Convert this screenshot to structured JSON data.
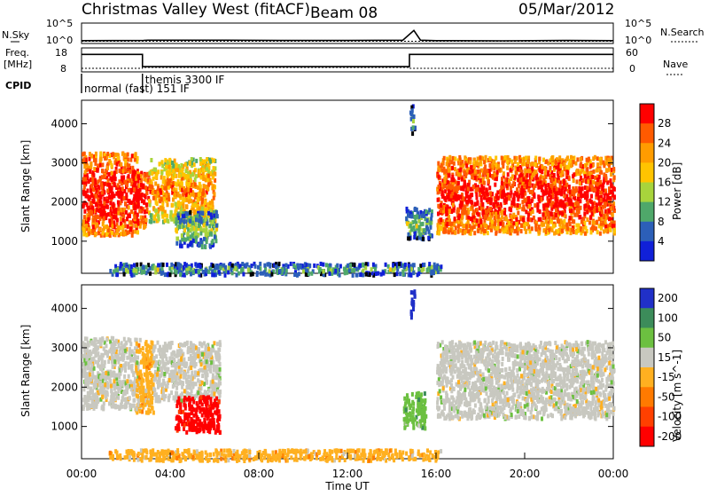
{
  "header": {
    "station": "Christmas Valley West (fitACF)",
    "beam": "Beam 08",
    "date": "05/Mar/2012"
  },
  "chart_data": [
    {
      "type": "line",
      "name": "noise-panel",
      "left_label": "N.Sky",
      "right_label": "N.Search",
      "y_ticks_left": [
        "10^5",
        "10^0"
      ],
      "y_ticks_right": [
        "10^5",
        "10^0"
      ],
      "x": [
        0,
        2.8,
        3.0,
        6,
        9,
        12,
        14.5,
        15.0,
        15.3,
        16,
        19,
        22,
        24
      ],
      "sky": [
        0.7,
        0.75,
        0.8,
        0.8,
        0.75,
        0.75,
        0.8,
        3.2,
        0.8,
        0.7,
        0.65,
        0.75,
        0.7
      ],
      "search": [
        0.55,
        0.55,
        0.55,
        0.55,
        0.55,
        0.55,
        0.55,
        0.55,
        0.55,
        0.55,
        0.55,
        0.55,
        0.55
      ]
    },
    {
      "type": "line",
      "name": "frequency-panel",
      "left_label_1": "Freq.",
      "left_label_2": "[MHz]",
      "right_label": "Nave",
      "y_ticks_left": [
        "18",
        "8"
      ],
      "y_ticks_right": [
        "60",
        "0"
      ],
      "x": [
        0,
        2.75,
        2.75,
        14.8,
        14.8,
        24
      ],
      "freq": [
        15.3,
        15.3,
        10.2,
        10.2,
        15.3,
        15.3
      ],
      "nave": [
        9,
        9,
        11,
        11,
        9,
        9
      ]
    },
    {
      "type": "table",
      "name": "cpid-panel",
      "label": "CPID",
      "segments": [
        {
          "start": 0,
          "end": 2.75,
          "text": "normal (fast) 151 IF"
        },
        {
          "start": 2.75,
          "end": 14.8,
          "text": "themis 3300 IF"
        }
      ]
    },
    {
      "type": "heatmap",
      "name": "power-panel",
      "ylabel": "Slant Range [km]",
      "y_ticks": [
        1000,
        2000,
        3000,
        4000
      ],
      "ylim": [
        180,
        4600
      ],
      "colorbar_label": "Power [dB]",
      "colorbar_ticks": [
        "28",
        "24",
        "20",
        "16",
        "12",
        "8",
        "4"
      ],
      "colors": [
        "#ff0000",
        "#ff5a00",
        "#ff9c00",
        "#ffc400",
        "#a8d43c",
        "#4fa86a",
        "#2c5fb8",
        "#1020d8"
      ],
      "regions": [
        {
          "t0": 0.0,
          "t1": 2.5,
          "r0": 1200,
          "r1": 3300,
          "level": 0.85
        },
        {
          "t0": 2.3,
          "t1": 3.0,
          "r0": 1400,
          "r1": 2800,
          "level": 0.9
        },
        {
          "t0": 3.0,
          "t1": 6.0,
          "r0": 1500,
          "r1": 3150,
          "level": 0.6
        },
        {
          "t0": 4.2,
          "t1": 6.1,
          "r0": 900,
          "r1": 1800,
          "level": 0.3
        },
        {
          "t0": 14.6,
          "t1": 15.8,
          "r0": 1100,
          "r1": 1900,
          "level": 0.25
        },
        {
          "t0": 16.0,
          "t1": 24.0,
          "r0": 1250,
          "r1": 3200,
          "level": 0.82
        },
        {
          "t0": 1.2,
          "t1": 16.2,
          "r0": 180,
          "r1": 480,
          "level": 0.2
        },
        {
          "t0": 14.8,
          "t1": 15.0,
          "r0": 3800,
          "r1": 4500,
          "level": 0.15
        }
      ]
    },
    {
      "type": "heatmap",
      "name": "velocity-panel",
      "ylabel": "Slant Range [km]",
      "y_ticks": [
        1000,
        2000,
        3000,
        4000
      ],
      "ylim": [
        180,
        4600
      ],
      "colorbar_label": "Velocity [m s^-1]",
      "colorbar_ticks": [
        "200",
        "100",
        "50",
        "15",
        "-15",
        "-50",
        "-100",
        "-200"
      ],
      "colors": [
        "#2030c8",
        "#3c8c5a",
        "#6cc040",
        "#c8c8c0",
        "#ffb020",
        "#ff7a00",
        "#ff4000",
        "#ff0000"
      ],
      "regions": [
        {
          "t0": 0.0,
          "t1": 2.6,
          "r0": 1500,
          "r1": 3300,
          "level": "gray"
        },
        {
          "t0": 2.4,
          "t1": 3.2,
          "r0": 1400,
          "r1": 3200,
          "level": "orange"
        },
        {
          "t0": 3.2,
          "t1": 6.2,
          "r0": 1700,
          "r1": 3200,
          "level": "gray"
        },
        {
          "t0": 4.2,
          "t1": 6.2,
          "r0": 900,
          "r1": 1800,
          "level": "red"
        },
        {
          "t0": 14.5,
          "t1": 15.5,
          "r0": 1000,
          "r1": 1900,
          "level": "green"
        },
        {
          "t0": 16.0,
          "t1": 24.0,
          "r0": 1250,
          "r1": 3200,
          "level": "gray"
        },
        {
          "t0": 1.2,
          "t1": 16.2,
          "r0": 180,
          "r1": 450,
          "level": "orange"
        },
        {
          "t0": 14.8,
          "t1": 15.0,
          "r0": 3800,
          "r1": 4500,
          "level": "blue"
        }
      ]
    }
  ],
  "x_axis": {
    "label": "Time UT",
    "ticks": [
      "00:00",
      "04:00",
      "08:00",
      "12:00",
      "16:00",
      "20:00",
      "00:00"
    ]
  }
}
